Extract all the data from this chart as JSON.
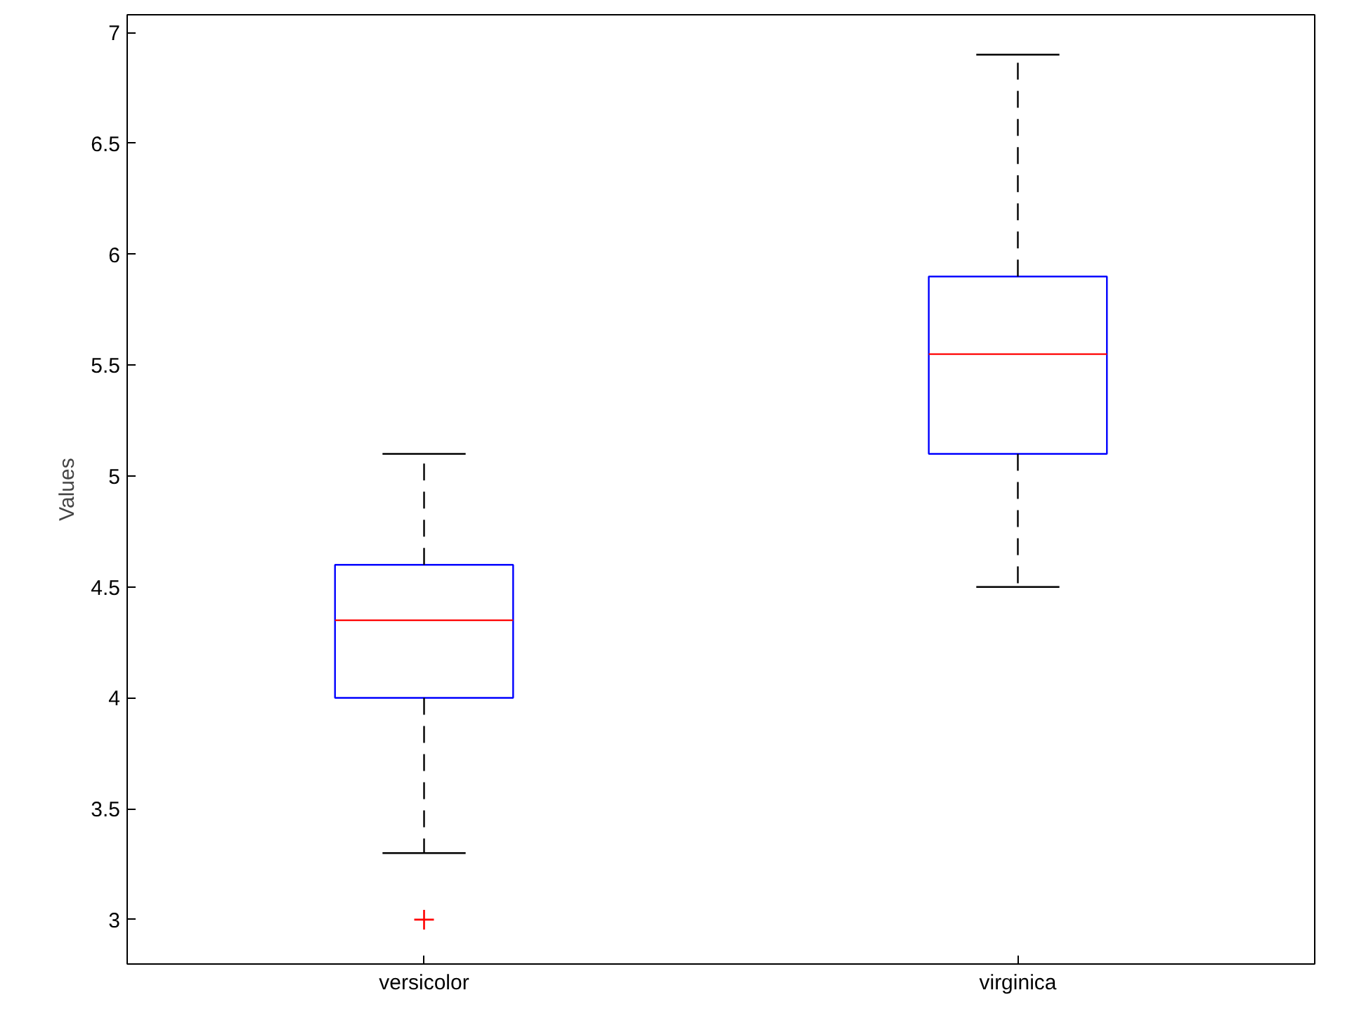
{
  "chart_data": {
    "type": "box",
    "ylabel": "Values",
    "categories": [
      "versicolor",
      "virginica"
    ],
    "color": "#0000ff",
    "boxes": [
      {
        "low": 3.3,
        "q1": 4.0,
        "median": 4.35,
        "q3": 4.6,
        "high": 5.1,
        "outliers": [
          3.0
        ]
      },
      {
        "low": 4.5,
        "q1": 5.1,
        "median": 5.55,
        "q3": 5.9,
        "high": 6.9
      }
    ],
    "ylim": [
      2.8,
      7.08
    ],
    "yticks": [
      3,
      3.5,
      4,
      4.5,
      5,
      5.5,
      6,
      6.5,
      7
    ]
  }
}
